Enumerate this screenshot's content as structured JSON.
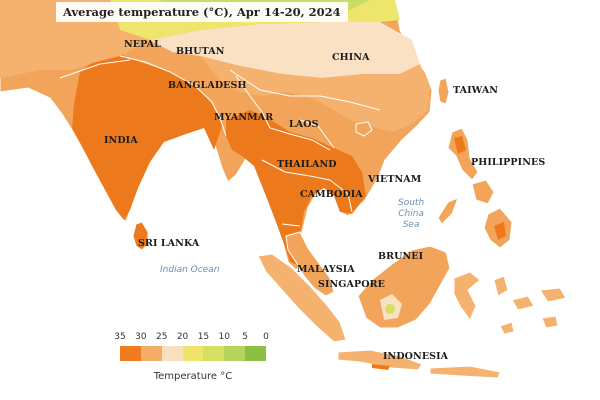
{
  "title": "Average temperature (°C), Apr 14-20, 2024",
  "labels": {
    "nepal": "NEPAL",
    "bhutan": "BHUTAN",
    "china": "CHINA",
    "taiwan": "TAIWAN",
    "bangladesh": "BANGLADESH",
    "myanmar": "MYANMAR",
    "india": "INDIA",
    "laos": "LAOS",
    "thailand": "THAILAND",
    "philippines": "PHILIPPINES",
    "vietnam": "VIETNAM",
    "cambodia": "CAMBODIA",
    "sri_lanka": "SRI LANKA",
    "brunei": "BRUNEI",
    "malaysia": "MALAYSIA",
    "singapore": "SINGAPORE",
    "indonesia": "INDONESIA"
  },
  "seas": {
    "south_china_sea": "South\nChina\nSea",
    "indian_ocean": "Indian Ocean"
  },
  "legend": {
    "title": "Temperature °C",
    "ticks": [
      "35",
      "30",
      "25",
      "20",
      "15",
      "10",
      "5",
      "0"
    ],
    "colors": [
      "#ef7d1f",
      "#f4ad67",
      "#f9dfc0",
      "#efe46a",
      "#d6df63",
      "#b4d45c",
      "#8cbf45"
    ]
  },
  "map_colors": {
    "ocean": "#ffffff",
    "land_default": "#f2a55a",
    "hot": "#ec7a1c",
    "warm": "#f4b26e",
    "mild": "#fae1c4",
    "cool_yellow": "#ede56c",
    "cool_green": "#c9dc63",
    "borders": "#ffffff"
  }
}
